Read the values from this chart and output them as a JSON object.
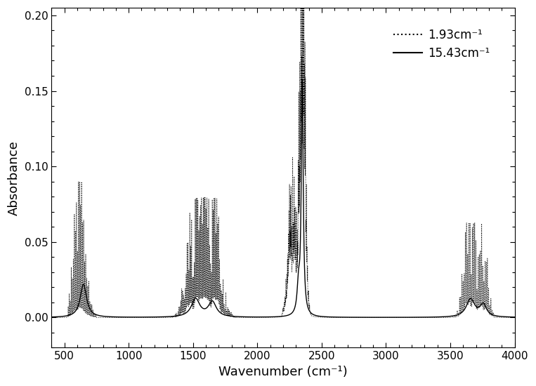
{
  "title": "",
  "xlabel": "Wavenumber (cm⁻¹)",
  "ylabel": "Absorbance",
  "xlim": [
    400,
    4000
  ],
  "ylim": [
    -0.02,
    0.205
  ],
  "yticks": [
    0.0,
    0.05,
    0.1,
    0.15,
    0.2
  ],
  "xticks": [
    500,
    1000,
    1500,
    2000,
    2500,
    3000,
    3500,
    4000
  ],
  "legend_labels": [
    "1.93cm⁻¹",
    "15.43cm⁻¹"
  ],
  "background_color": "#ffffff",
  "line_color": "#000000"
}
